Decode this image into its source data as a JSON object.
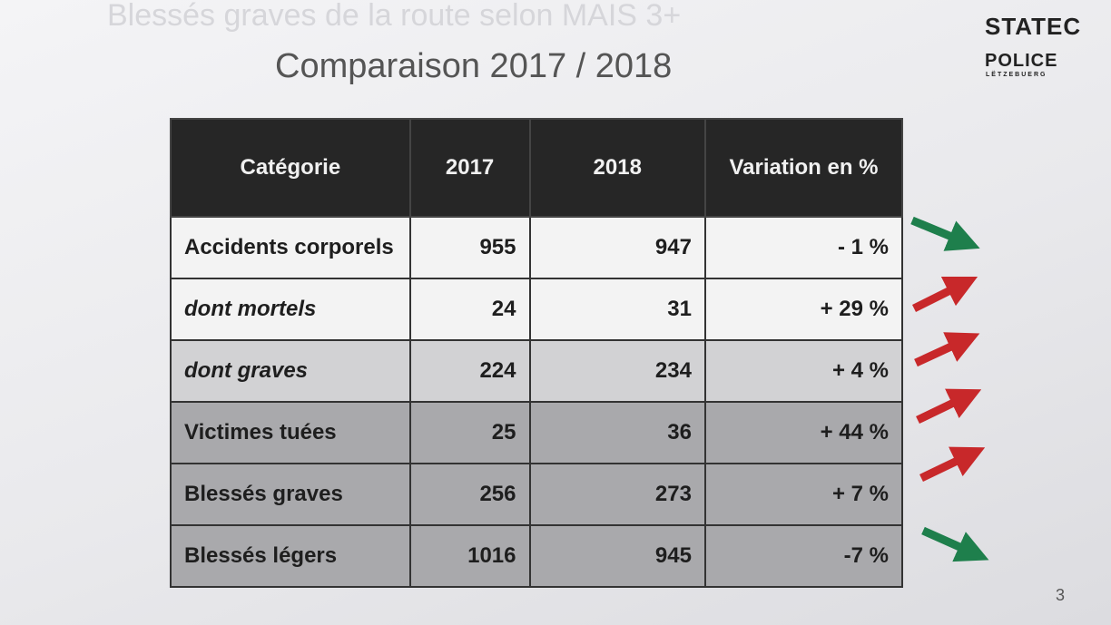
{
  "slide": {
    "background_title": "Blessés graves de la route selon MAIS 3+",
    "title": "Comparaison 2017 / 2018",
    "logo_statec": "STATEC",
    "logo_police": "POLICE",
    "logo_police_sub": "LËTZEBUERG",
    "page_number": "3"
  },
  "table": {
    "header": [
      "Catégorie",
      "2017",
      "2018",
      "Variation en %"
    ],
    "rows": [
      [
        "Accidents corporels",
        955,
        947,
        "- 1 %"
      ],
      [
        "dont mortels",
        24,
        31,
        "+ 29 %"
      ],
      [
        "dont graves",
        224,
        234,
        "+ 4 %"
      ],
      [
        "Victimes tuées",
        25,
        36,
        "+ 44 %"
      ],
      [
        "Blessés graves",
        256,
        273,
        "+ 7 %"
      ],
      [
        "Blessés légers",
        1016,
        945,
        "-7 %"
      ]
    ]
  }
}
